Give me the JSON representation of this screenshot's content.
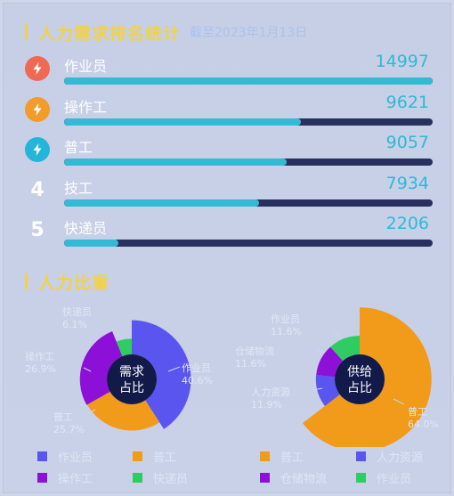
{
  "ranking": {
    "title": "人力需求排名统计",
    "subtitle": "截至2023年1月13日",
    "items": [
      {
        "rank": "1",
        "name": "作业员",
        "value": "14997",
        "amount": 14997,
        "badge_color": "#ee6a52",
        "icon": "lightning-icon"
      },
      {
        "rank": "2",
        "name": "操作工",
        "value": "9621",
        "amount": 9621,
        "badge_color": "#f29c2c",
        "icon": "lightning-icon"
      },
      {
        "rank": "3",
        "name": "普工",
        "value": "9057",
        "amount": 9057,
        "badge_color": "#24b6da",
        "icon": "lightning-icon"
      },
      {
        "rank": "4",
        "name": "技工",
        "value": "7934",
        "amount": 7934
      },
      {
        "rank": "5",
        "name": "快递员",
        "value": "2206",
        "amount": 2206
      }
    ]
  },
  "ratio": {
    "title": "人力比重"
  },
  "chart_data": [
    {
      "type": "pie",
      "center_label": [
        "需求",
        "占比"
      ],
      "slices": [
        {
          "name": "作业员",
          "value": 40.6,
          "label": "作业员\n40.6%",
          "color": "#5b55f0"
        },
        {
          "name": "普工",
          "value": 25.7,
          "label": "普工\n25.7%",
          "color": "#f29a1a"
        },
        {
          "name": "操作工",
          "value": 26.9,
          "label": "操作工\n26.9%",
          "color": "#8d10d9"
        },
        {
          "name": "快递员",
          "value": 6.1,
          "label": "快递员\n6.1%",
          "color": "#2fcc63"
        }
      ]
    },
    {
      "type": "pie",
      "center_label": [
        "供给",
        "占比"
      ],
      "slices": [
        {
          "name": "普工",
          "value": 64.0,
          "label": "普工\n64.0%",
          "color": "#f29a1a"
        },
        {
          "name": "人力资源",
          "value": 11.9,
          "label": "人力资源\n11.9%",
          "color": "#5b55f0"
        },
        {
          "name": "仓储物流",
          "value": 11.6,
          "label": "仓储物流\n11.6%",
          "color": "#8d10d9"
        },
        {
          "name": "作业员",
          "value": 11.6,
          "label": "作业员\n11.6%",
          "color": "#2fcc63"
        }
      ]
    }
  ],
  "legend": {
    "left": [
      {
        "label": "作业员",
        "color": "#5b55f0"
      },
      {
        "label": "普工",
        "color": "#f29a1a"
      },
      {
        "label": "操作工",
        "color": "#8d10d9"
      },
      {
        "label": "快递员",
        "color": "#2fcc63"
      }
    ],
    "right": [
      {
        "label": "普工",
        "color": "#f29a1a"
      },
      {
        "label": "人力资源",
        "color": "#5b55f0"
      },
      {
        "label": "仓储物流",
        "color": "#8d10d9"
      },
      {
        "label": "作业员",
        "color": "#2fcc63"
      }
    ]
  }
}
